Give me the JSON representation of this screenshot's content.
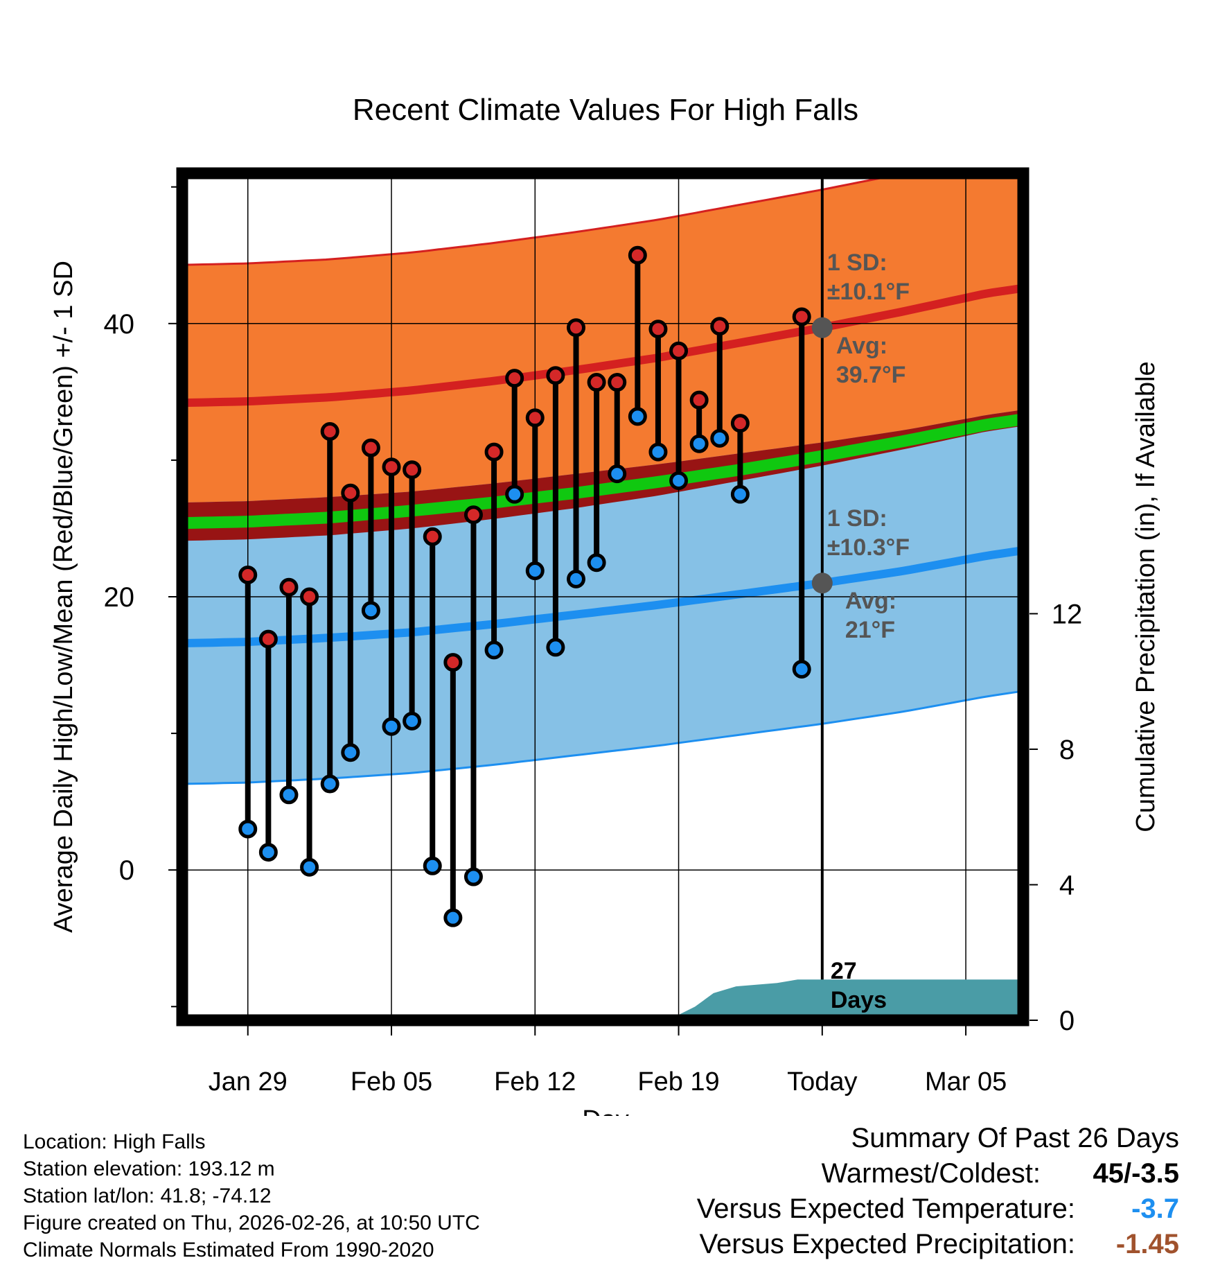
{
  "chart_data": {
    "type": "line",
    "title": "Recent Climate Values For High Falls",
    "xlabel": "Day",
    "ylabel_left": "Average Daily High/Low/Mean (Red/Blue/Green) +/- 1 SD",
    "ylabel_right": "Cumulative Precipitation (in), If Available",
    "x_range": [
      -3.2,
      37.8
    ],
    "x_ticks": [
      {
        "day": 0,
        "label": "Jan 29"
      },
      {
        "day": 7,
        "label": "Feb 05"
      },
      {
        "day": 14,
        "label": "Feb 12"
      },
      {
        "day": 21,
        "label": "Feb 19"
      },
      {
        "day": 28,
        "label": "Today"
      },
      {
        "day": 35,
        "label": "Mar 05"
      }
    ],
    "y_left_range": [
      -11,
      51
    ],
    "y_left_ticks": [
      0,
      20,
      40
    ],
    "y_left_minor_ticks": [
      -10,
      10,
      30,
      50
    ],
    "y_right_range": [
      0,
      25
    ],
    "y_right_ticks": [
      0,
      4,
      8,
      12
    ],
    "gridlines": true,
    "today_day": 28,
    "normals_days": [
      -3,
      0,
      4,
      8,
      12,
      16,
      20,
      24,
      28,
      32,
      36,
      37.8
    ],
    "normal_high": [
      34.2,
      34.3,
      34.6,
      35.1,
      35.8,
      36.6,
      37.5,
      38.6,
      39.7,
      40.9,
      42.2,
      42.6
    ],
    "normal_high_sd": 10.1,
    "normal_low": [
      16.6,
      16.7,
      17.0,
      17.4,
      18.0,
      18.7,
      19.4,
      20.2,
      21.0,
      21.9,
      23.0,
      23.4
    ],
    "normal_low_sd": 10.3,
    "normal_mean": [
      25.4,
      25.5,
      25.8,
      26.3,
      26.9,
      27.6,
      28.4,
      29.3,
      30.3,
      31.4,
      32.6,
      33.0
    ],
    "series": [
      {
        "name": "Observed High",
        "days": [
          0,
          1,
          2,
          3,
          4,
          5,
          6,
          7,
          8,
          9,
          10,
          11,
          12,
          13,
          14,
          15,
          16,
          17,
          18,
          19,
          20,
          21,
          22,
          23,
          24,
          27
        ],
        "values": [
          21.6,
          16.9,
          20.7,
          20.0,
          32.1,
          27.6,
          30.9,
          29.5,
          29.3,
          24.4,
          15.2,
          26.0,
          30.6,
          36.0,
          33.1,
          36.2,
          39.7,
          35.7,
          35.7,
          45.0,
          39.6,
          38.0,
          34.4,
          39.8,
          32.7,
          40.5
        ]
      },
      {
        "name": "Observed Low",
        "days": [
          0,
          1,
          2,
          3,
          4,
          5,
          6,
          7,
          8,
          9,
          10,
          11,
          12,
          13,
          14,
          15,
          16,
          17,
          18,
          19,
          20,
          21,
          22,
          23,
          24,
          27
        ],
        "values": [
          3.0,
          1.3,
          5.5,
          0.2,
          6.3,
          8.6,
          19.0,
          10.5,
          10.9,
          0.3,
          -3.5,
          -0.5,
          16.1,
          27.5,
          21.9,
          16.3,
          21.3,
          22.5,
          29.0,
          33.2,
          30.6,
          28.5,
          31.2,
          31.6,
          27.5,
          14.7
        ]
      },
      {
        "name": "Cumulative Precipitation",
        "days": [
          17.8,
          19.8,
          20.8,
          21.8,
          22.7,
          23.8,
          25.8,
          26.8,
          28,
          37.8
        ],
        "values": [
          0,
          0,
          0.1,
          0.4,
          0.8,
          1.0,
          1.1,
          1.2,
          1.2,
          1.2
        ]
      }
    ],
    "annotations": {
      "high_sd_title": "1 SD:",
      "high_sd_value": "±10.1°F",
      "high_avg_title": "Avg:",
      "high_avg_value": "39.7°F",
      "high_avg": 39.7,
      "low_sd_title": "1 SD:",
      "low_sd_value": "±10.3°F",
      "low_avg_title": "Avg:",
      "low_avg_value": "21°F",
      "low_avg": 21.0,
      "days_count": "27",
      "days_label": "Days"
    },
    "colors": {
      "high_band": "#f47a30",
      "low_band": "#86c1e6",
      "overlap_band": "#981414",
      "high_line": "#d42020",
      "low_line": "#1d8ff0",
      "mean_line": "#10c810",
      "precip_fill": "#4a9ca6",
      "high_point": "#d42828",
      "low_point": "#1d8ff0",
      "avg_marker": "#555555",
      "annotation_text": "#555555"
    }
  },
  "footer": {
    "location": "Location: High Falls",
    "elevation": "Station elevation: 193.12 m",
    "latlon": "Station lat/lon: 41.8; -74.12",
    "created": "Figure created on Thu, 2026-02-26, at 10:50 UTC",
    "normals": "Climate Normals Estimated From 1990-2020"
  },
  "summary": {
    "title": "Summary Of Past 26 Days",
    "warmest_coldest_label": "Warmest/Coldest:",
    "warmest_coldest_value": "45/-3.5",
    "temp_label": "Versus Expected Temperature:",
    "temp_value": "-3.7",
    "temp_color": "#1d8ff0",
    "precip_label": "Versus Expected Precipitation:",
    "precip_value": "-1.45",
    "precip_color": "#a0522d"
  }
}
